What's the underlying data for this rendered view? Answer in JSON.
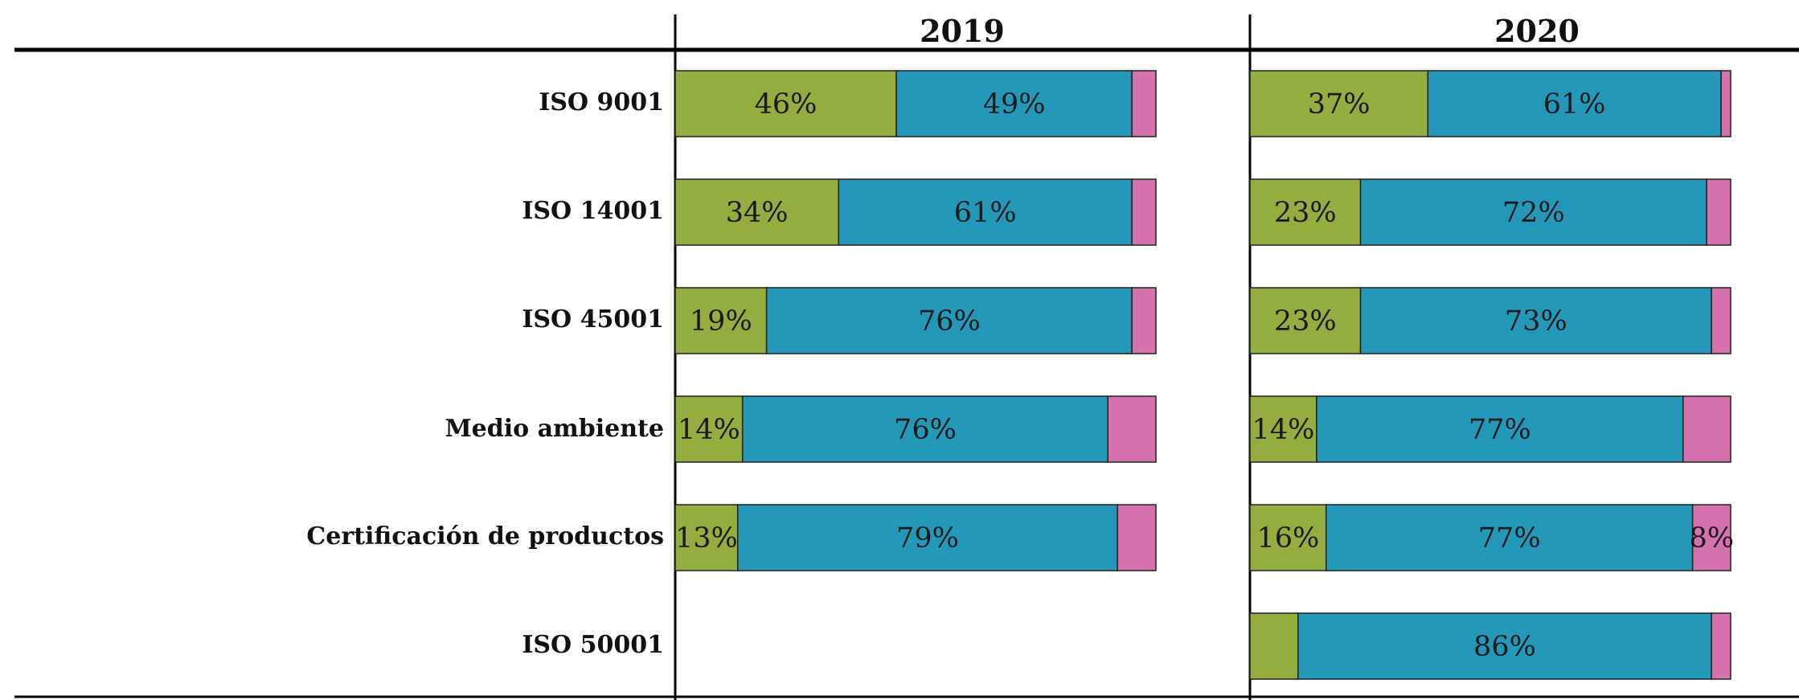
{
  "chart_data": {
    "type": "bar",
    "orientation": "horizontal",
    "stacked": true,
    "normalized": true,
    "categories": [
      "ISO 9001",
      "ISO 14001",
      "ISO 45001",
      "Medio ambiente",
      "Certificación de productos",
      "ISO 50001"
    ],
    "panels": [
      {
        "title": "2019",
        "series": [
          {
            "values": [
              46,
              34,
              19,
              14,
              13,
              null
            ],
            "labels": [
              "46%",
              "34%",
              "19%",
              "14%",
              "13%",
              ""
            ]
          },
          {
            "values": [
              49,
              61,
              76,
              76,
              79,
              null
            ],
            "labels": [
              "49%",
              "61%",
              "76%",
              "76%",
              "79%",
              ""
            ]
          },
          {
            "values": [
              5,
              5,
              5,
              10,
              8,
              null
            ],
            "labels": [
              "",
              "",
              "",
              "",
              "",
              ""
            ]
          }
        ]
      },
      {
        "title": "2020",
        "series": [
          {
            "values": [
              37,
              23,
              23,
              14,
              16,
              10
            ],
            "labels": [
              "37%",
              "23%",
              "23%",
              "14%",
              "16%",
              ""
            ]
          },
          {
            "values": [
              61,
              72,
              73,
              77,
              77,
              86
            ],
            "labels": [
              "61%",
              "72%",
              "73%",
              "77%",
              "77%",
              "86%"
            ]
          },
          {
            "values": [
              2,
              5,
              4,
              10,
              8,
              4
            ],
            "labels": [
              "",
              "",
              "",
              "",
              "8%",
              ""
            ]
          }
        ]
      }
    ],
    "colors": [
      "#93ad3f",
      "#2398b8",
      "#d571ac"
    ],
    "legend": "none",
    "grid": false
  }
}
